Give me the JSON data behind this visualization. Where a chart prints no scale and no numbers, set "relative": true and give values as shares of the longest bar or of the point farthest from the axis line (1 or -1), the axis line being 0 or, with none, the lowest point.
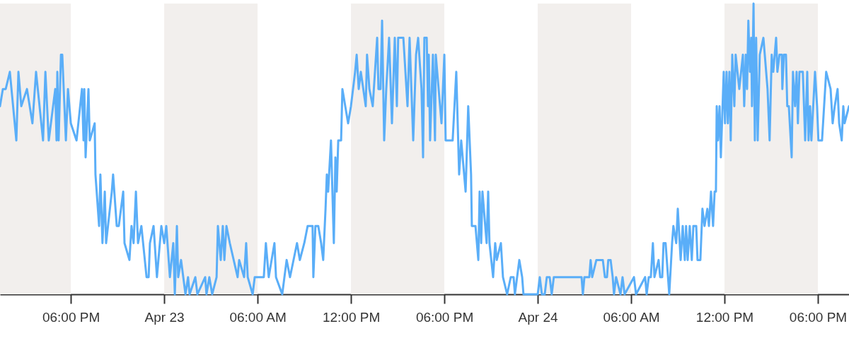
{
  "chart_data": {
    "type": "line",
    "relative": true,
    "line_style": "solid",
    "marker": "none",
    "xlim": [
      "--04-22T13:27",
      "--04-24T20:00"
    ],
    "xticks": [
      {
        "value": "--04-22T18:00",
        "label": "06:00 PM"
      },
      {
        "value": "--04-23T00:00",
        "label": "Apr 23"
      },
      {
        "value": "--04-23T06:00",
        "label": "06:00 AM"
      },
      {
        "value": "--04-23T12:00",
        "label": "12:00 PM"
      },
      {
        "value": "--04-23T18:00",
        "label": "06:00 PM"
      },
      {
        "value": "--04-24T00:00",
        "label": "Apr 24"
      },
      {
        "value": "--04-24T06:00",
        "label": "06:00 AM"
      },
      {
        "value": "--04-24T12:00",
        "label": "12:00 PM"
      },
      {
        "value": "--04-24T18:00",
        "label": "06:00 PM"
      }
    ],
    "bands": [
      {
        "axis": "x",
        "from": "--04-22T13:27",
        "to": "--04-22T18:00",
        "color": "#f2efed"
      },
      {
        "axis": "x",
        "from": "--04-23T00:00",
        "to": "--04-23T06:00",
        "color": "#f2efed"
      },
      {
        "axis": "x",
        "from": "--04-23T12:00",
        "to": "--04-23T18:00",
        "color": "#f2efed"
      },
      {
        "axis": "x",
        "from": "--04-24T00:00",
        "to": "--04-24T06:00",
        "color": "#f2efed"
      },
      {
        "axis": "x",
        "from": "--04-24T12:00",
        "to": "--04-24T18:00",
        "color": "#f2efed"
      }
    ],
    "series": [
      {
        "color": "#5aaef8",
        "x": [
          "--04-22T13:27",
          "--04-22T13:38",
          "--04-22T13:49",
          "--04-22T14:05",
          "--04-22T14:30",
          "--04-22T14:38",
          "--04-22T14:49",
          "--04-22T15:11",
          "--04-22T15:32",
          "--04-22T15:46",
          "--04-22T16:13",
          "--04-22T16:22",
          "--04-22T16:35",
          "--04-22T17:00",
          "--04-22T17:05",
          "--04-22T17:08",
          "--04-22T17:13",
          "--04-22T17:22",
          "--04-22T17:27",
          "--04-22T17:41",
          "--04-22T17:49",
          "--04-22T18:00",
          "--04-22T18:22",
          "--04-22T18:43",
          "--04-22T18:49",
          "--04-22T18:52",
          "--04-22T18:57",
          "--04-22T19:08",
          "--04-22T19:13",
          "--04-22T19:32",
          "--04-22T19:35",
          "--04-22T19:49",
          "--04-22T19:54",
          "--04-22T20:02",
          "--04-22T20:11",
          "--04-22T20:16",
          "--04-22T20:38",
          "--04-22T20:43",
          "--04-22T20:57",
          "--04-22T21:05",
          "--04-22T21:22",
          "--04-22T21:27",
          "--04-22T21:46",
          "--04-22T21:54",
          "--04-22T22:02",
          "--04-22T22:11",
          "--04-22T22:19",
          "--04-22T22:32",
          "--04-22T22:52",
          "--04-22T23:00",
          "--04-22T23:05",
          "--04-22T23:19",
          "--04-22T23:32",
          "--04-22T23:49",
          "--04-23T00:00",
          "--04-23T00:08",
          "--04-23T00:22",
          "--04-23T00:35",
          "--04-23T00:41",
          "--04-23T00:49",
          "--04-23T00:54",
          "--04-23T01:05",
          "--04-23T01:22",
          "--04-23T01:32",
          "--04-23T01:38",
          "--04-23T02:00",
          "--04-23T02:08",
          "--04-23T02:38",
          "--04-23T02:43",
          "--04-23T02:54",
          "--04-23T03:05",
          "--04-23T03:22",
          "--04-23T03:27",
          "--04-23T03:38",
          "--04-23T03:46",
          "--04-23T03:52",
          "--04-23T04:00",
          "--04-23T04:13",
          "--04-23T04:43",
          "--04-23T04:49",
          "--04-23T05:08",
          "--04-23T05:16",
          "--04-23T05:22",
          "--04-23T05:41",
          "--04-23T05:49",
          "--04-23T06:24",
          "--04-23T06:32",
          "--04-23T06:43",
          "--04-23T07:05",
          "--04-23T07:11",
          "--04-23T07:35",
          "--04-23T07:52",
          "--04-23T08:05",
          "--04-23T08:32",
          "--04-23T08:43",
          "--04-23T09:00",
          "--04-23T09:13",
          "--04-23T09:32",
          "--04-23T09:35",
          "--04-23T09:43",
          "--04-23T09:54",
          "--04-23T10:05",
          "--04-23T10:13",
          "--04-23T10:22",
          "--04-23T10:27",
          "--04-23T10:32",
          "--04-23T10:43",
          "--04-23T10:54",
          "--04-23T11:00",
          "--04-23T11:05",
          "--04-23T11:11",
          "--04-23T11:22",
          "--04-23T11:27",
          "--04-23T11:38",
          "--04-23T11:49",
          "--04-23T12:00",
          "--04-23T12:16",
          "--04-23T12:22",
          "--04-23T12:30",
          "--04-23T12:38",
          "--04-23T12:57",
          "--04-23T13:02",
          "--04-23T13:11",
          "--04-23T13:24",
          "--04-23T13:41",
          "--04-23T13:46",
          "--04-23T13:54",
          "--04-23T14:00",
          "--04-23T14:08",
          "--04-23T14:16",
          "--04-23T14:27",
          "--04-23T14:38",
          "--04-23T14:49",
          "--04-23T14:57",
          "--04-23T15:02",
          "--04-23T15:22",
          "--04-23T15:38",
          "--04-23T15:46",
          "--04-23T16:00",
          "--04-23T16:11",
          "--04-23T16:19",
          "--04-23T16:32",
          "--04-23T16:38",
          "--04-23T16:43",
          "--04-23T16:52",
          "--04-23T16:57",
          "--04-23T17:00",
          "--04-23T17:05",
          "--04-23T17:16",
          "--04-23T17:24",
          "--04-23T17:27",
          "--04-23T17:49",
          "--04-23T18:00",
          "--04-23T18:05",
          "--04-23T18:32",
          "--04-23T18:46",
          "--04-23T18:57",
          "--04-23T19:05",
          "--04-23T19:22",
          "--04-23T19:32",
          "--04-23T19:43",
          "--04-23T19:46",
          "--04-23T20:00",
          "--04-23T20:11",
          "--04-23T20:16",
          "--04-23T20:22",
          "--04-23T20:27",
          "--04-23T20:43",
          "--04-23T20:49",
          "--04-23T20:54",
          "--04-23T21:08",
          "--04-23T21:16",
          "--04-23T21:22",
          "--04-23T21:38",
          "--04-23T21:46",
          "--04-23T22:02",
          "--04-23T22:16",
          "--04-23T22:27",
          "--04-23T22:32",
          "--04-23T22:49",
          "--04-23T23:00",
          "--04-23T23:05",
          "--04-24T00:00",
          "--04-24T00:08",
          "--04-24T00:16",
          "--04-24T00:27",
          "--04-24T00:35",
          "--04-24T00:46",
          "--04-24T00:54",
          "--04-24T01:02",
          "--04-24T02:49",
          "--04-24T02:54",
          "--04-24T03:00",
          "--04-24T03:19",
          "--04-24T03:24",
          "--04-24T03:30",
          "--04-24T03:46",
          "--04-24T04:11",
          "--04-24T04:19",
          "--04-24T04:27",
          "--04-24T04:32",
          "--04-24T04:41",
          "--04-24T04:49",
          "--04-24T04:54",
          "--04-24T05:02",
          "--04-24T05:19",
          "--04-24T05:27",
          "--04-24T05:35",
          "--04-24T06:11",
          "--04-24T06:19",
          "--04-24T06:54",
          "--04-24T07:00",
          "--04-24T07:08",
          "--04-24T07:16",
          "--04-24T07:24",
          "--04-24T07:30",
          "--04-24T07:46",
          "--04-24T07:52",
          "--04-24T08:00",
          "--04-24T08:05",
          "--04-24T08:13",
          "--04-24T08:27",
          "--04-24T08:38",
          "--04-24T08:43",
          "--04-24T08:54",
          "--04-24T09:00",
          "--04-24T09:11",
          "--04-24T09:19",
          "--04-24T09:27",
          "--04-24T09:32",
          "--04-24T09:38",
          "--04-24T09:46",
          "--04-24T09:54",
          "--04-24T10:00",
          "--04-24T10:11",
          "--04-24T10:16",
          "--04-24T10:27",
          "--04-24T10:35",
          "--04-24T10:43",
          "--04-24T10:54",
          "--04-24T11:00",
          "--04-24T11:08",
          "--04-24T11:16",
          "--04-24T11:22",
          "--04-24T11:27",
          "--04-24T11:30",
          "--04-24T11:35",
          "--04-24T11:41",
          "--04-24T11:46",
          "--04-24T11:57",
          "--04-24T12:02",
          "--04-24T12:08",
          "--04-24T12:13",
          "--04-24T12:19",
          "--04-24T12:24",
          "--04-24T12:30",
          "--04-24T12:38",
          "--04-24T12:43",
          "--04-24T12:57",
          "--04-24T13:11",
          "--04-24T13:16",
          "--04-24T13:22",
          "--04-24T13:27",
          "--04-24T13:32",
          "--04-24T13:38",
          "--04-24T13:43",
          "--04-24T13:46",
          "--04-24T13:52",
          "--04-24T13:57",
          "--04-24T14:02",
          "--04-24T14:08",
          "--04-24T14:16",
          "--04-24T14:30",
          "--04-24T14:46",
          "--04-24T14:54",
          "--04-24T15:02",
          "--04-24T15:08",
          "--04-24T15:19",
          "--04-24T15:24",
          "--04-24T15:32",
          "--04-24T15:41",
          "--04-24T15:43",
          "--04-24T15:49",
          "--04-24T15:57",
          "--04-24T16:02",
          "--04-24T16:08",
          "--04-24T16:19",
          "--04-24T16:24",
          "--04-24T16:32",
          "--04-24T16:38",
          "--04-24T16:43",
          "--04-24T16:49",
          "--04-24T17:02",
          "--04-24T17:11",
          "--04-24T17:19",
          "--04-24T17:24",
          "--04-24T17:30",
          "--04-24T17:35",
          "--04-24T17:49",
          "--04-24T17:57",
          "--04-24T18:02",
          "--04-24T18:16",
          "--04-24T18:24",
          "--04-24T18:32",
          "--04-24T18:49",
          "--04-24T18:57",
          "--04-24T19:05",
          "--04-24T19:16",
          "--04-24T19:22",
          "--04-24T19:32",
          "--04-24T19:38",
          "--04-24T19:43",
          "--04-24T20:00"
        ],
        "values": [
          0.647,
          0.706,
          0.706,
          0.765,
          0.529,
          0.765,
          0.647,
          0.706,
          0.588,
          0.765,
          0.529,
          0.765,
          0.529,
          0.706,
          0.529,
          0.765,
          0.529,
          0.824,
          0.824,
          0.529,
          0.706,
          0.588,
          0.529,
          0.706,
          0.529,
          0.706,
          0.471,
          0.706,
          0.529,
          0.588,
          0.412,
          0.235,
          0.412,
          0.176,
          0.353,
          0.176,
          0.353,
          0.412,
          0.235,
          0.235,
          0.353,
          0.176,
          0.118,
          0.235,
          0.176,
          0.353,
          0.176,
          0.235,
          0.059,
          0.059,
          0.176,
          0.235,
          0.059,
          0.235,
          0.176,
          0.235,
          0.059,
          0.176,
          0,
          0.235,
          0.059,
          0.118,
          0,
          0.059,
          0,
          0.059,
          0,
          0.059,
          0,
          0.059,
          0,
          0.059,
          0.235,
          0.118,
          0.235,
          0.118,
          0.235,
          0.176,
          0.059,
          0.118,
          0.059,
          0.176,
          0.059,
          0,
          0.059,
          0.059,
          0.176,
          0.059,
          0.176,
          0.059,
          0,
          0.118,
          0.059,
          0.176,
          0.118,
          0.176,
          0.235,
          0.235,
          0.059,
          0.235,
          0.235,
          0.176,
          0.118,
          0.294,
          0.412,
          0.353,
          0.529,
          0.176,
          0.471,
          0.353,
          0.529,
          0.529,
          0.706,
          0.647,
          0.588,
          0.647,
          0.765,
          0.824,
          0.706,
          0.765,
          0.647,
          0.824,
          0.706,
          0.647,
          0.882,
          0.706,
          0.706,
          0.941,
          0.529,
          0.706,
          0.882,
          0.588,
          0.882,
          0.647,
          0.882,
          0.882,
          0.647,
          0.882,
          0.529,
          0.824,
          0.882,
          0.706,
          0.471,
          0.882,
          0.882,
          0.647,
          0.824,
          0.529,
          0.824,
          0.529,
          0.824,
          0.588,
          0.824,
          0.529,
          0.529,
          0.765,
          0.412,
          0.529,
          0.353,
          0.647,
          0.412,
          0.235,
          0.235,
          0.118,
          0.353,
          0.176,
          0.353,
          0.176,
          0.353,
          0.176,
          0.059,
          0.176,
          0.118,
          0.176,
          0.059,
          0,
          0.059,
          0.059,
          0,
          0.118,
          0.059,
          0,
          0,
          0.059,
          0,
          0,
          0.059,
          0.059,
          0,
          0.059,
          0.059,
          0,
          0.059,
          0.059,
          0.118,
          0.059,
          0.118,
          0.118,
          0.059,
          0.059,
          0.118,
          0.118,
          0.059,
          0,
          0.059,
          0,
          0.059,
          0,
          0.059,
          0,
          0.059,
          0,
          0.059,
          0.059,
          0.176,
          0.059,
          0.118,
          0.059,
          0.059,
          0.176,
          0.176,
          0,
          0.176,
          0.235,
          0.176,
          0.294,
          0.118,
          0.235,
          0.118,
          0.235,
          0.118,
          0.235,
          0.118,
          0.235,
          0.235,
          0.118,
          0.118,
          0.294,
          0.235,
          0.294,
          0.235,
          0.353,
          0.235,
          0.353,
          0.353,
          0.647,
          0.529,
          0.647,
          0.471,
          0.765,
          0.588,
          0.765,
          0.588,
          0.765,
          0.529,
          0.824,
          0.647,
          0.824,
          0.706,
          0.824,
          0.647,
          0.824,
          0.706,
          0.941,
          0.765,
          0.882,
          0.647,
          1,
          0.529,
          0.882,
          0.529,
          0.824,
          0.882,
          0.706,
          0.529,
          0.824,
          0.765,
          0.882,
          0.765,
          0.824,
          0.824,
          0.706,
          0.824,
          0.824,
          0.647,
          0.647,
          0.471,
          0.765,
          0.647,
          0.765,
          0.588,
          0.765,
          0.765,
          0.529,
          0.765,
          0.529,
          0.647,
          0.529,
          0.765,
          0.647,
          0.529,
          0.529,
          0.647,
          0.765,
          0.706,
          0.588,
          0.647,
          0.706,
          0.588,
          0.529,
          0.647,
          0.588,
          0.647
        ]
      }
    ]
  }
}
